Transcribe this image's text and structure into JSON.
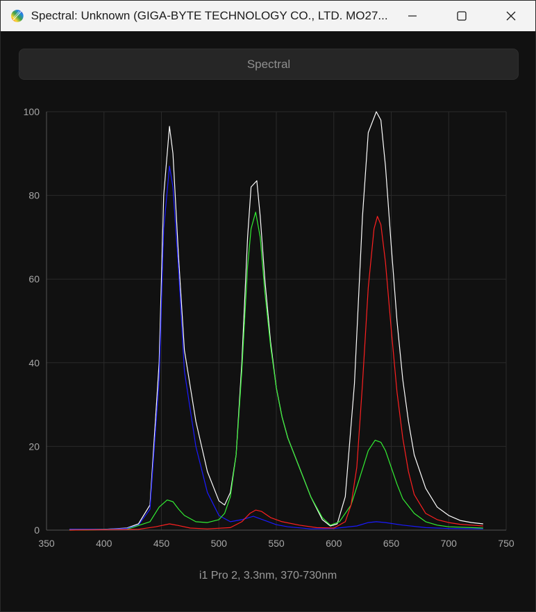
{
  "window": {
    "title": "Spectral: Unknown (GIGA-BYTE TECHNOLOGY CO., LTD. MO27...",
    "icon": "rainbow-app-icon",
    "controls": [
      "minimize-icon",
      "maximize-icon",
      "close-icon"
    ]
  },
  "toolbar": {
    "spectral_label": "Spectral"
  },
  "caption": "i1 Pro 2, 3.3nm, 370-730nm",
  "chart_data": {
    "type": "line",
    "title": "",
    "xlabel": "",
    "ylabel": "",
    "xlim": [
      350,
      750
    ],
    "ylim": [
      0,
      100
    ],
    "xticks": [
      350,
      400,
      450,
      500,
      550,
      600,
      650,
      700,
      750
    ],
    "yticks": [
      0,
      20,
      40,
      60,
      80,
      100
    ],
    "grid": true,
    "background": "#111111",
    "series": [
      {
        "color": "#ffffff",
        "points": [
          [
            370,
            0.2
          ],
          [
            400,
            0.2
          ],
          [
            420,
            0.5
          ],
          [
            430,
            1.5
          ],
          [
            440,
            6
          ],
          [
            448,
            40
          ],
          [
            452,
            80
          ],
          [
            457,
            96.5
          ],
          [
            460,
            90
          ],
          [
            465,
            65
          ],
          [
            470,
            43
          ],
          [
            480,
            26
          ],
          [
            490,
            14
          ],
          [
            500,
            7
          ],
          [
            505,
            6
          ],
          [
            510,
            9
          ],
          [
            515,
            18
          ],
          [
            520,
            40
          ],
          [
            525,
            70
          ],
          [
            528,
            82
          ],
          [
            533,
            83.5
          ],
          [
            536,
            75
          ],
          [
            540,
            60
          ],
          [
            545,
            45
          ],
          [
            550,
            34
          ],
          [
            555,
            27
          ],
          [
            560,
            22
          ],
          [
            570,
            15
          ],
          [
            580,
            8
          ],
          [
            590,
            2.5
          ],
          [
            597,
            1
          ],
          [
            603,
            1.5
          ],
          [
            610,
            8
          ],
          [
            618,
            35
          ],
          [
            625,
            75
          ],
          [
            630,
            95
          ],
          [
            637,
            100
          ],
          [
            641,
            98
          ],
          [
            645,
            87
          ],
          [
            650,
            68
          ],
          [
            655,
            50
          ],
          [
            660,
            36
          ],
          [
            665,
            26
          ],
          [
            670,
            18
          ],
          [
            680,
            10
          ],
          [
            690,
            5.5
          ],
          [
            700,
            3.5
          ],
          [
            710,
            2.3
          ],
          [
            720,
            1.8
          ],
          [
            730,
            1.5
          ]
        ]
      },
      {
        "color": "#1a1aff",
        "points": [
          [
            370,
            0.2
          ],
          [
            400,
            0.2
          ],
          [
            420,
            0.4
          ],
          [
            430,
            1.2
          ],
          [
            440,
            5
          ],
          [
            448,
            36
          ],
          [
            452,
            72
          ],
          [
            457,
            87
          ],
          [
            460,
            82
          ],
          [
            465,
            62
          ],
          [
            470,
            38
          ],
          [
            480,
            20
          ],
          [
            490,
            9
          ],
          [
            500,
            3.5
          ],
          [
            510,
            2
          ],
          [
            520,
            2.5
          ],
          [
            530,
            3.3
          ],
          [
            540,
            2.3
          ],
          [
            550,
            1.3
          ],
          [
            560,
            0.8
          ],
          [
            580,
            0.3
          ],
          [
            600,
            0.4
          ],
          [
            620,
            1
          ],
          [
            630,
            1.8
          ],
          [
            637,
            2
          ],
          [
            645,
            1.8
          ],
          [
            660,
            1.2
          ],
          [
            680,
            0.6
          ],
          [
            700,
            0.4
          ],
          [
            730,
            0.3
          ]
        ]
      },
      {
        "color": "#33ee33",
        "points": [
          [
            370,
            0
          ],
          [
            420,
            0.2
          ],
          [
            440,
            2
          ],
          [
            448,
            5.5
          ],
          [
            455,
            7.2
          ],
          [
            460,
            6.8
          ],
          [
            465,
            5
          ],
          [
            470,
            3.5
          ],
          [
            480,
            2
          ],
          [
            490,
            1.8
          ],
          [
            500,
            2.5
          ],
          [
            505,
            4
          ],
          [
            510,
            8
          ],
          [
            515,
            18
          ],
          [
            520,
            38
          ],
          [
            525,
            63
          ],
          [
            528,
            72
          ],
          [
            532,
            76
          ],
          [
            536,
            70
          ],
          [
            540,
            57
          ],
          [
            545,
            44
          ],
          [
            550,
            34
          ],
          [
            555,
            27
          ],
          [
            560,
            22
          ],
          [
            570,
            15
          ],
          [
            580,
            8
          ],
          [
            590,
            3
          ],
          [
            597,
            1.2
          ],
          [
            605,
            2
          ],
          [
            615,
            6
          ],
          [
            622,
            12
          ],
          [
            630,
            19
          ],
          [
            636,
            21.5
          ],
          [
            641,
            21
          ],
          [
            645,
            19
          ],
          [
            650,
            15
          ],
          [
            655,
            11
          ],
          [
            660,
            7.5
          ],
          [
            670,
            4
          ],
          [
            680,
            2
          ],
          [
            690,
            1.2
          ],
          [
            700,
            0.8
          ],
          [
            730,
            0.5
          ]
        ]
      },
      {
        "color": "#ff2020",
        "points": [
          [
            370,
            0
          ],
          [
            430,
            0.2
          ],
          [
            445,
            0.8
          ],
          [
            457,
            1.5
          ],
          [
            465,
            1.1
          ],
          [
            475,
            0.5
          ],
          [
            490,
            0.3
          ],
          [
            510,
            0.6
          ],
          [
            520,
            2
          ],
          [
            527,
            4
          ],
          [
            532,
            4.8
          ],
          [
            537,
            4.5
          ],
          [
            545,
            3
          ],
          [
            555,
            2
          ],
          [
            570,
            1.2
          ],
          [
            585,
            0.6
          ],
          [
            600,
            0.5
          ],
          [
            610,
            2
          ],
          [
            615,
            6
          ],
          [
            620,
            15
          ],
          [
            625,
            35
          ],
          [
            630,
            58
          ],
          [
            635,
            72
          ],
          [
            638,
            75
          ],
          [
            641,
            73
          ],
          [
            645,
            64
          ],
          [
            650,
            48
          ],
          [
            655,
            33
          ],
          [
            660,
            22
          ],
          [
            665,
            14
          ],
          [
            670,
            8.5
          ],
          [
            680,
            4
          ],
          [
            690,
            2.5
          ],
          [
            700,
            1.8
          ],
          [
            710,
            1.4
          ],
          [
            720,
            1.2
          ],
          [
            730,
            1
          ]
        ]
      }
    ]
  }
}
